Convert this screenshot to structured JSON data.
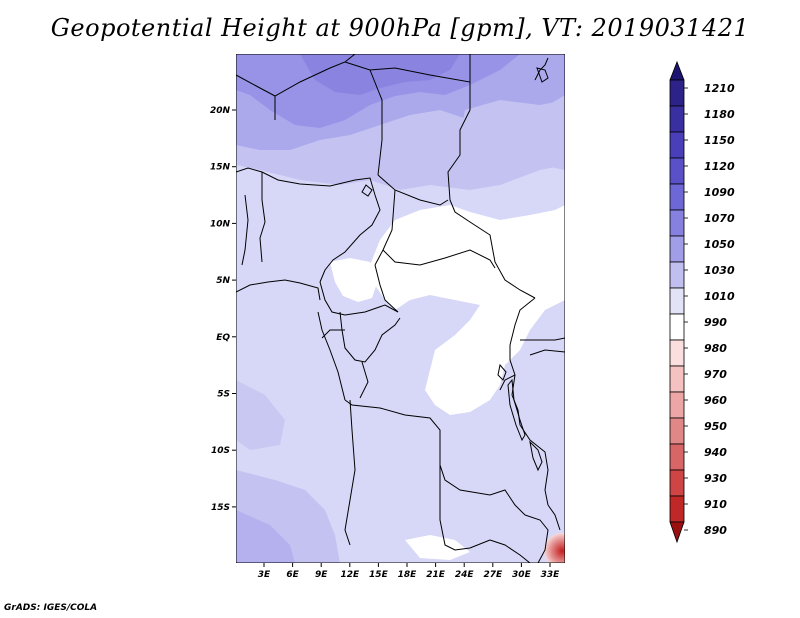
{
  "title": "Geopotential Height at 900hPa [gpm], VT: 2019031421",
  "footer": "GrADS: IGES/COLA",
  "map": {
    "variable": "Geopotential Height",
    "level": "900hPa",
    "units": "gpm",
    "valid_time": "2019031421",
    "lat_labels": [
      "20N",
      "15N",
      "10N",
      "5N",
      "EQ",
      "5S",
      "10S",
      "15S"
    ],
    "lon_labels": [
      "3E",
      "6E",
      "9E",
      "12E",
      "15E",
      "18E",
      "21E",
      "24E",
      "27E",
      "30E",
      "33E"
    ]
  },
  "colorbar": {
    "labels": [
      "1210",
      "1180",
      "1150",
      "1120",
      "1090",
      "1070",
      "1050",
      "1030",
      "1010",
      "990",
      "980",
      "970",
      "960",
      "950",
      "940",
      "930",
      "910",
      "890"
    ],
    "colors": [
      "#2d2288",
      "#3a2fa0",
      "#4a3fb8",
      "#5a51c8",
      "#6e68d6",
      "#8680de",
      "#a19de6",
      "#c1bff0",
      "#e3e3f8",
      "#ffffff",
      "#fbdede",
      "#f5c1c1",
      "#eca6a6",
      "#e08888",
      "#d86666",
      "#cf4444",
      "#c02828",
      "#a81818"
    ],
    "top_arrow_color": "#1c1470",
    "bottom_arrow_color": "#9a1010"
  },
  "colors": {
    "pale_lavender": "#d7d8f7",
    "light_lavender": "#c3c2f1",
    "medium_lavender": "#aba8ec",
    "deep_lavender": "#9893e6",
    "white": "#ffffff",
    "red_low": "#d84848",
    "boundary": "#000000"
  }
}
